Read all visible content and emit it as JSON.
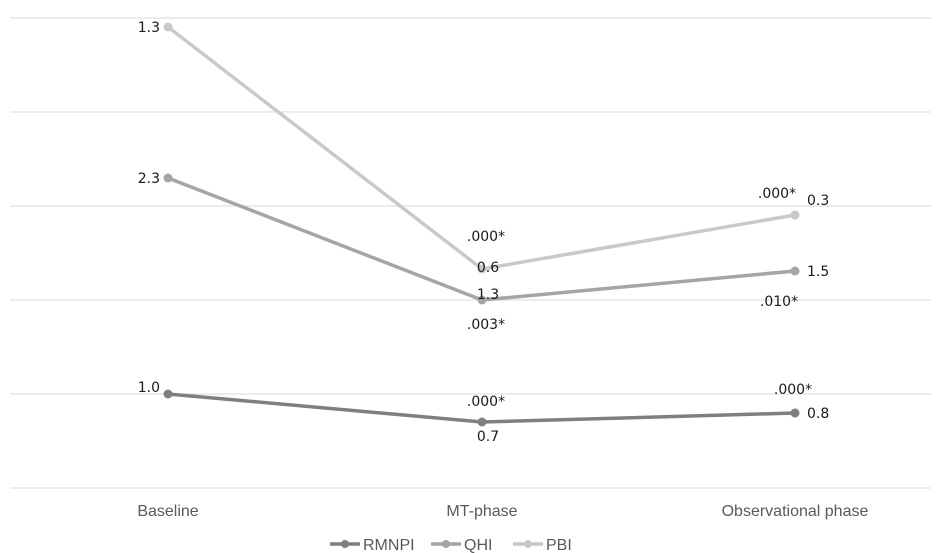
{
  "chart_data": {
    "type": "line",
    "categories": [
      "Baseline",
      "MT-phase",
      "Observational phase"
    ],
    "grid": true,
    "legend_position": "bottom",
    "series": [
      {
        "name": "RMNPI",
        "color": "#7f7f7f",
        "values": [
          1.0,
          0.7,
          0.8
        ],
        "labels": [
          "1.0",
          "0.7",
          "0.8"
        ],
        "significance": [
          "",
          ".000*",
          ".000*"
        ]
      },
      {
        "name": "QHI",
        "color": "#a5a5a5",
        "values": [
          2.3,
          1.3,
          1.5
        ],
        "labels": [
          "2.3",
          "1.3",
          "1.5"
        ],
        "significance": [
          "",
          ".003*",
          ".010*"
        ]
      },
      {
        "name": "PBI",
        "color": "#c9c9c9",
        "values": [
          1.3,
          0.6,
          0.3
        ],
        "labels": [
          "1.3",
          "0.6",
          "0.3"
        ],
        "significance": [
          "",
          ".000*",
          ".000*"
        ]
      }
    ]
  }
}
